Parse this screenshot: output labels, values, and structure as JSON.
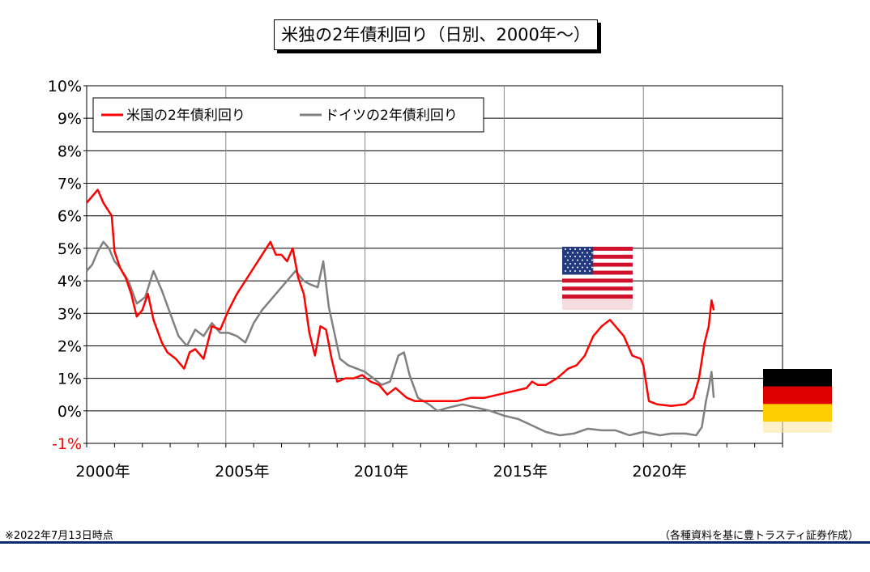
{
  "title": "米独の2年債利回り（日別、2000年～）",
  "footnote_date": "※2022年7月13日時点",
  "footnote_source": "（各種資料を基に豊トラスティ証券作成）",
  "colors": {
    "us": "#ff0000",
    "de": "#808080",
    "negative_tick": "#ff0000",
    "footer_rule": "#0d2b6b"
  },
  "icons": {
    "us": "us-flag-icon",
    "de": "germany-flag-icon"
  },
  "chart_data": {
    "type": "line",
    "title": "米独の2年債利回り（日別、2000年～）",
    "xlabel": "",
    "ylabel": "",
    "xlim": [
      2000,
      2025
    ],
    "ylim": [
      -1,
      10
    ],
    "y_unit": "%",
    "grid": true,
    "legend_position": "top-left",
    "y_ticks": [
      "-1%",
      "0%",
      "1%",
      "2%",
      "3%",
      "4%",
      "5%",
      "6%",
      "7%",
      "8%",
      "9%",
      "10%"
    ],
    "x_ticks": [
      "2000年",
      "2005年",
      "2010年",
      "2015年",
      "2020年"
    ],
    "series": [
      {
        "name": "米国の2年債利回り",
        "color": "#ff0000",
        "x": [
          2000.0,
          2000.2,
          2000.4,
          2000.6,
          2000.9,
          2001.0,
          2001.2,
          2001.4,
          2001.6,
          2001.8,
          2002.0,
          2002.2,
          2002.4,
          2002.7,
          2002.9,
          2003.2,
          2003.5,
          2003.7,
          2003.9,
          2004.2,
          2004.5,
          2004.8,
          2005.1,
          2005.4,
          2005.7,
          2006.0,
          2006.3,
          2006.6,
          2006.8,
          2007.0,
          2007.2,
          2007.4,
          2007.6,
          2007.8,
          2008.0,
          2008.2,
          2008.4,
          2008.6,
          2008.8,
          2009.0,
          2009.3,
          2009.6,
          2009.9,
          2010.2,
          2010.5,
          2010.8,
          2011.1,
          2011.5,
          2011.8,
          2012.3,
          2012.8,
          2013.3,
          2013.8,
          2014.3,
          2014.8,
          2015.3,
          2015.8,
          2016.0,
          2016.2,
          2016.5,
          2016.9,
          2017.3,
          2017.6,
          2017.9,
          2018.2,
          2018.5,
          2018.8,
          2019.0,
          2019.3,
          2019.6,
          2019.9,
          2020.0,
          2020.2,
          2020.5,
          2021.0,
          2021.5,
          2021.8,
          2022.0,
          2022.2,
          2022.35,
          2022.45,
          2022.53
        ],
        "values": [
          6.4,
          6.6,
          6.8,
          6.4,
          6.0,
          4.9,
          4.4,
          4.1,
          3.6,
          2.9,
          3.1,
          3.6,
          2.8,
          2.1,
          1.8,
          1.6,
          1.3,
          1.8,
          1.9,
          1.6,
          2.6,
          2.5,
          3.1,
          3.6,
          4.0,
          4.4,
          4.8,
          5.2,
          4.8,
          4.8,
          4.6,
          5.0,
          4.1,
          3.6,
          2.4,
          1.7,
          2.6,
          2.5,
          1.6,
          0.9,
          1.0,
          1.0,
          1.1,
          0.9,
          0.8,
          0.5,
          0.7,
          0.4,
          0.3,
          0.3,
          0.3,
          0.3,
          0.4,
          0.4,
          0.5,
          0.6,
          0.7,
          0.9,
          0.8,
          0.8,
          1.0,
          1.3,
          1.4,
          1.7,
          2.3,
          2.6,
          2.8,
          2.6,
          2.3,
          1.7,
          1.6,
          1.4,
          0.3,
          0.2,
          0.15,
          0.2,
          0.4,
          1.0,
          2.1,
          2.6,
          3.4,
          3.1
        ]
      },
      {
        "name": "ドイツの2年債利回り",
        "color": "#808080",
        "x": [
          2000.0,
          2000.2,
          2000.4,
          2000.6,
          2000.8,
          2001.0,
          2001.2,
          2001.5,
          2001.8,
          2002.1,
          2002.4,
          2002.7,
          2003.0,
          2003.3,
          2003.6,
          2003.9,
          2004.2,
          2004.5,
          2004.8,
          2005.1,
          2005.4,
          2005.7,
          2006.0,
          2006.3,
          2006.6,
          2006.9,
          2007.2,
          2007.5,
          2007.8,
          2008.0,
          2008.3,
          2008.5,
          2008.7,
          2008.9,
          2009.1,
          2009.4,
          2009.7,
          2010.0,
          2010.3,
          2010.6,
          2010.9,
          2011.2,
          2011.4,
          2011.6,
          2011.9,
          2012.3,
          2012.6,
          2013.0,
          2013.5,
          2014.0,
          2014.5,
          2015.0,
          2015.5,
          2016.0,
          2016.5,
          2017.0,
          2017.5,
          2018.0,
          2018.5,
          2019.0,
          2019.5,
          2020.0,
          2020.3,
          2020.6,
          2021.0,
          2021.5,
          2021.9,
          2022.1,
          2022.25,
          2022.35,
          2022.45,
          2022.53
        ],
        "values": [
          4.3,
          4.5,
          4.9,
          5.2,
          5.0,
          4.6,
          4.4,
          4.0,
          3.3,
          3.5,
          4.3,
          3.7,
          3.0,
          2.3,
          2.0,
          2.5,
          2.3,
          2.7,
          2.4,
          2.4,
          2.3,
          2.1,
          2.7,
          3.1,
          3.4,
          3.7,
          4.0,
          4.3,
          4.0,
          3.9,
          3.8,
          4.6,
          3.2,
          2.4,
          1.6,
          1.4,
          1.3,
          1.2,
          1.0,
          0.8,
          0.9,
          1.7,
          1.8,
          1.1,
          0.4,
          0.2,
          0.0,
          0.1,
          0.2,
          0.1,
          0.0,
          -0.15,
          -0.25,
          -0.45,
          -0.65,
          -0.75,
          -0.7,
          -0.55,
          -0.6,
          -0.6,
          -0.75,
          -0.65,
          -0.7,
          -0.75,
          -0.7,
          -0.7,
          -0.75,
          -0.5,
          0.3,
          0.7,
          1.2,
          0.4
        ]
      }
    ]
  }
}
